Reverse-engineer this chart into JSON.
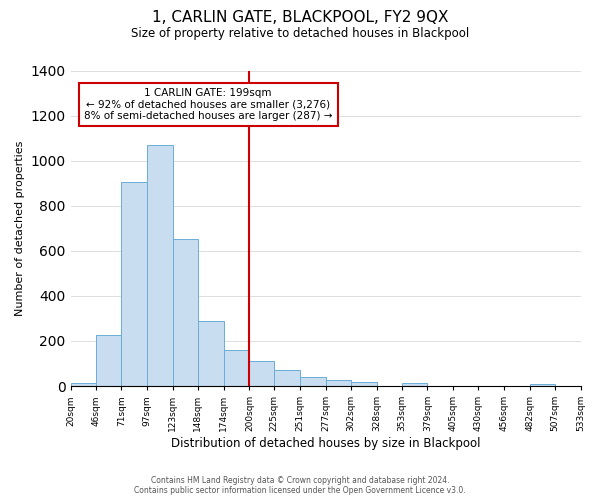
{
  "title": "1, CARLIN GATE, BLACKPOOL, FY2 9QX",
  "subtitle": "Size of property relative to detached houses in Blackpool",
  "xlabel": "Distribution of detached houses by size in Blackpool",
  "ylabel": "Number of detached properties",
  "bar_edges": [
    20,
    46,
    71,
    97,
    123,
    148,
    174,
    200,
    225,
    251,
    277,
    302,
    328,
    353,
    379,
    405,
    430,
    456,
    482,
    507,
    533
  ],
  "bar_heights": [
    15,
    228,
    905,
    1070,
    652,
    288,
    160,
    110,
    70,
    42,
    25,
    20,
    0,
    15,
    0,
    0,
    0,
    0,
    10,
    0
  ],
  "bar_color": "#c9ddf0",
  "bar_edgecolor": "#6aaed6",
  "vline_x": 200,
  "vline_color": "#cc0000",
  "annotation_title": "1 CARLIN GATE: 199sqm",
  "annotation_line1": "← 92% of detached houses are smaller (3,276)",
  "annotation_line2": "8% of semi-detached houses are larger (287) →",
  "annotation_box_color": "#ffffff",
  "annotation_box_edgecolor": "#cc0000",
  "ylim": [
    0,
    1400
  ],
  "yticks": [
    0,
    200,
    400,
    600,
    800,
    1000,
    1200,
    1400
  ],
  "tick_labels": [
    "20sqm",
    "46sqm",
    "71sqm",
    "97sqm",
    "123sqm",
    "148sqm",
    "174sqm",
    "200sqm",
    "225sqm",
    "251sqm",
    "277sqm",
    "302sqm",
    "328sqm",
    "353sqm",
    "379sqm",
    "405sqm",
    "430sqm",
    "456sqm",
    "482sqm",
    "507sqm",
    "533sqm"
  ],
  "footer_line1": "Contains HM Land Registry data © Crown copyright and database right 2024.",
  "footer_line2": "Contains public sector information licensed under the Open Government Licence v3.0.",
  "background_color": "#ffffff",
  "grid_color": "#dddddd"
}
